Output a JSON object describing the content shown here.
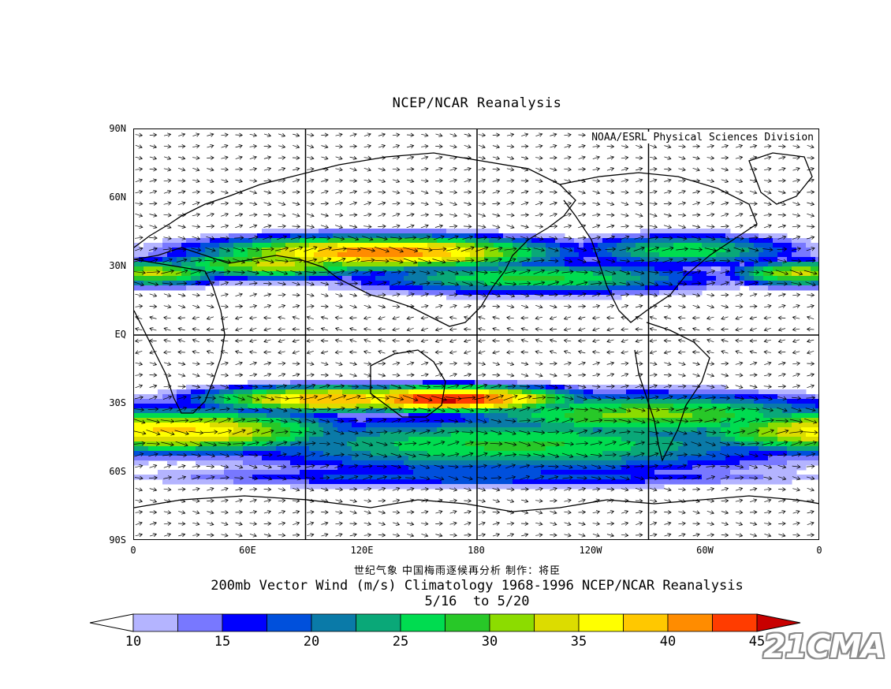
{
  "figure": {
    "top_title": "NCEP/NCAR Reanalysis",
    "credit": "NOAA/ESRL Physical Sciences Division",
    "cn_caption": "世纪气象  中国梅雨逐候再分析  制作：将臣",
    "main_title": "200mb Vector Wind (m/s) Climatology 1968-1996 NCEP/NCAR Reanalysis",
    "date_range": "5/16  to 5/20",
    "watermark": "21CMA"
  },
  "axes": {
    "lat_labels": [
      "90N",
      "60N",
      "30N",
      "EQ",
      "30S",
      "60S",
      "90S"
    ],
    "lon_labels": [
      "0",
      "60E",
      "120E",
      "180",
      "120W",
      "60W",
      "0"
    ]
  },
  "colorbar": {
    "labels": [
      "10",
      "15",
      "20",
      "25",
      "30",
      "35",
      "40",
      "45"
    ],
    "colors": [
      "#ffffff",
      "#b4b4ff",
      "#7878ff",
      "#0000ff",
      "#0050dc",
      "#0a7aa8",
      "#0aa878",
      "#00dc50",
      "#28c828",
      "#8cdc00",
      "#dcdc00",
      "#ffff00",
      "#ffc800",
      "#ff8c00",
      "#ff3c00",
      "#c80000"
    ]
  },
  "chart_data": {
    "type": "heatmap",
    "variable": "200mb Vector Wind (m/s)",
    "period": "1968-1996",
    "dates": "5/16 to 5/20",
    "lon_range": [
      0,
      360
    ],
    "lat_range": [
      -90,
      90
    ],
    "levels": [
      10,
      15,
      20,
      25,
      30,
      35,
      40,
      45
    ],
    "jets": [
      {
        "lon_center": 130,
        "lat_center": 36,
        "lon_width": 110,
        "lat_width": 9,
        "peak": 42
      },
      {
        "lon_center": 75,
        "lat_center": 31,
        "lon_width": 80,
        "lat_width": 8,
        "peak": 33
      },
      {
        "lon_center": 10,
        "lat_center": 27,
        "lon_width": 45,
        "lat_width": 7,
        "peak": 33
      },
      {
        "lon_center": 210,
        "lat_center": 25,
        "lon_width": 120,
        "lat_width": 9,
        "peak": 28
      },
      {
        "lon_center": 290,
        "lat_center": 37,
        "lon_width": 75,
        "lat_width": 9,
        "peak": 27
      },
      {
        "lon_center": 350,
        "lat_center": 27,
        "lon_width": 45,
        "lat_width": 7,
        "peak": 33
      },
      {
        "lon_center": 165,
        "lat_center": -28,
        "lon_width": 80,
        "lat_width": 7,
        "peak": 46
      },
      {
        "lon_center": 105,
        "lat_center": -28,
        "lon_width": 85,
        "lat_width": 7,
        "peak": 40
      },
      {
        "lon_center": 20,
        "lat_center": -42,
        "lon_width": 110,
        "lat_width": 12,
        "peak": 38
      },
      {
        "lon_center": 270,
        "lat_center": -35,
        "lon_width": 130,
        "lat_width": 12,
        "peak": 31
      },
      {
        "lon_center": 200,
        "lat_center": -48,
        "lon_width": 190,
        "lat_width": 16,
        "peak": 28
      },
      {
        "lon_center": 180,
        "lat_center": -62,
        "lon_width": 220,
        "lat_width": 6,
        "peak": 20
      }
    ]
  }
}
